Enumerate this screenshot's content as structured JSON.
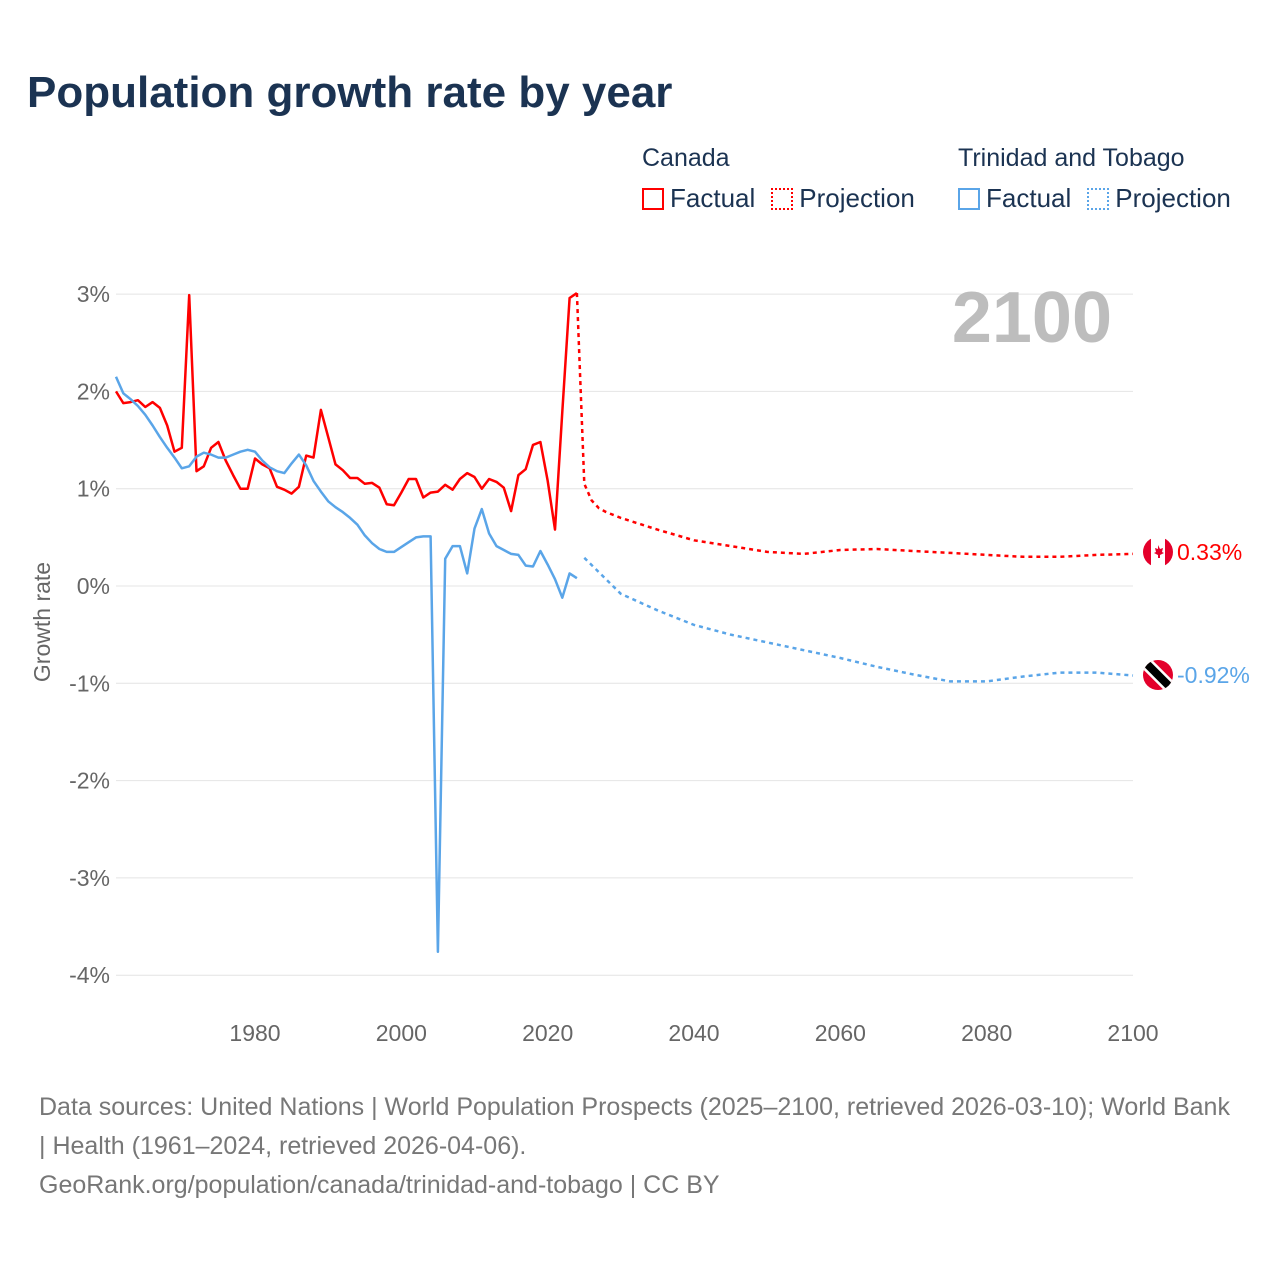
{
  "title": "Population growth rate by year",
  "legend": {
    "groups": [
      {
        "name": "Canada",
        "factual": "Factual",
        "projection": "Projection",
        "color": "#ff0000"
      },
      {
        "name": "Trinidad and Tobago",
        "factual": "Factual",
        "projection": "Projection",
        "color": "#5aa5e8"
      }
    ]
  },
  "year_watermark": "2100",
  "footer": {
    "line1": "Data sources: United Nations | World Population Prospects (2025–2100, retrieved 2026-03-10); World Bank | Health (1961–2024, retrieved 2026-04-06).",
    "line2": "GeoRank.org/population/canada/trinidad-and-tobago | CC BY"
  },
  "chart_data": {
    "type": "line",
    "title": "Population growth rate by year",
    "xlabel": "",
    "ylabel": "Growth rate",
    "xlim": [
      1961,
      2100
    ],
    "ylim": [
      -4,
      3
    ],
    "x_ticks": [
      1980,
      2000,
      2020,
      2040,
      2060,
      2080,
      2100
    ],
    "y_ticks": [
      3,
      2,
      1,
      0,
      -1,
      -2,
      -3,
      -4
    ],
    "y_tick_labels": [
      "3%",
      "2%",
      "1%",
      "0%",
      "-1%",
      "-2%",
      "-3%",
      "-4%"
    ],
    "grid": true,
    "series": [
      {
        "name": "Canada Factual",
        "color": "#ff0000",
        "style": "solid",
        "x": [
          1961,
          1962,
          1963,
          1964,
          1965,
          1966,
          1967,
          1968,
          1969,
          1970,
          1971,
          1972,
          1973,
          1974,
          1975,
          1976,
          1977,
          1978,
          1979,
          1980,
          1981,
          1982,
          1983,
          1984,
          1985,
          1986,
          1987,
          1988,
          1989,
          1990,
          1991,
          1992,
          1993,
          1994,
          1995,
          1996,
          1997,
          1998,
          1999,
          2000,
          2001,
          2002,
          2003,
          2004,
          2005,
          2006,
          2007,
          2008,
          2009,
          2010,
          2011,
          2012,
          2013,
          2014,
          2015,
          2016,
          2017,
          2018,
          2019,
          2020,
          2021,
          2022,
          2023,
          2024
        ],
        "y": [
          2.0,
          1.88,
          1.89,
          1.91,
          1.84,
          1.89,
          1.83,
          1.65,
          1.38,
          1.42,
          2.99,
          1.18,
          1.23,
          1.42,
          1.48,
          1.29,
          1.14,
          1.0,
          1.0,
          1.31,
          1.25,
          1.21,
          1.02,
          0.99,
          0.95,
          1.02,
          1.34,
          1.32,
          1.81,
          1.53,
          1.25,
          1.19,
          1.11,
          1.11,
          1.05,
          1.06,
          1.01,
          0.84,
          0.83,
          0.96,
          1.1,
          1.1,
          0.91,
          0.96,
          0.97,
          1.04,
          0.99,
          1.1,
          1.16,
          1.12,
          1.0,
          1.1,
          1.07,
          1.01,
          0.77,
          1.14,
          1.2,
          1.45,
          1.48,
          1.08,
          0.58,
          1.79,
          2.96,
          3.01
        ]
      },
      {
        "name": "Canada Projection",
        "color": "#ff0000",
        "style": "dotted",
        "x": [
          2024,
          2025,
          2026,
          2027,
          2028,
          2030,
          2035,
          2040,
          2045,
          2050,
          2055,
          2060,
          2065,
          2070,
          2075,
          2080,
          2085,
          2090,
          2095,
          2100
        ],
        "y": [
          3.01,
          1.05,
          0.88,
          0.8,
          0.76,
          0.7,
          0.58,
          0.47,
          0.41,
          0.35,
          0.33,
          0.37,
          0.38,
          0.36,
          0.34,
          0.32,
          0.3,
          0.3,
          0.32,
          0.33
        ]
      },
      {
        "name": "Trinidad and Tobago Factual",
        "color": "#5aa5e8",
        "style": "solid",
        "x": [
          1961,
          1962,
          1963,
          1964,
          1965,
          1966,
          1967,
          1968,
          1969,
          1970,
          1971,
          1972,
          1973,
          1974,
          1975,
          1976,
          1977,
          1978,
          1979,
          1980,
          1981,
          1982,
          1983,
          1984,
          1985,
          1986,
          1987,
          1988,
          1989,
          1990,
          1991,
          1992,
          1993,
          1994,
          1995,
          1996,
          1997,
          1998,
          1999,
          2000,
          2001,
          2002,
          2003,
          2004,
          2005,
          2006,
          2007,
          2008,
          2009,
          2010,
          2011,
          2012,
          2013,
          2014,
          2015,
          2016,
          2017,
          2018,
          2019,
          2020,
          2021,
          2022,
          2023,
          2024
        ],
        "y": [
          2.15,
          1.98,
          1.92,
          1.85,
          1.76,
          1.65,
          1.53,
          1.42,
          1.32,
          1.21,
          1.23,
          1.33,
          1.37,
          1.35,
          1.32,
          1.32,
          1.35,
          1.38,
          1.4,
          1.38,
          1.29,
          1.22,
          1.18,
          1.16,
          1.26,
          1.35,
          1.24,
          1.08,
          0.97,
          0.87,
          0.81,
          0.76,
          0.7,
          0.63,
          0.52,
          0.44,
          0.38,
          0.35,
          0.35,
          0.4,
          0.45,
          0.5,
          0.51,
          0.51,
          -3.76,
          0.28,
          0.41,
          0.41,
          0.13,
          0.59,
          0.79,
          0.54,
          0.41,
          0.37,
          0.33,
          0.32,
          0.21,
          0.2,
          0.36,
          0.22,
          0.07,
          -0.12,
          0.13,
          0.08
        ]
      },
      {
        "name": "Trinidad and Tobago Projection",
        "color": "#5aa5e8",
        "style": "dotted",
        "x": [
          2025,
          2030,
          2035,
          2040,
          2045,
          2050,
          2055,
          2060,
          2065,
          2070,
          2075,
          2080,
          2085,
          2090,
          2095,
          2100
        ],
        "y": [
          0.29,
          -0.08,
          -0.25,
          -0.4,
          -0.5,
          -0.58,
          -0.66,
          -0.74,
          -0.83,
          -0.91,
          -0.98,
          -0.98,
          -0.93,
          -0.89,
          -0.89,
          -0.92
        ]
      }
    ],
    "end_labels": [
      {
        "country": "Canada",
        "value": "0.33%",
        "y": 0.33,
        "color": "#ff0000"
      },
      {
        "country": "Trinidad and Tobago",
        "value": "-0.92%",
        "y": -0.92,
        "color": "#5aa5e8"
      }
    ]
  }
}
